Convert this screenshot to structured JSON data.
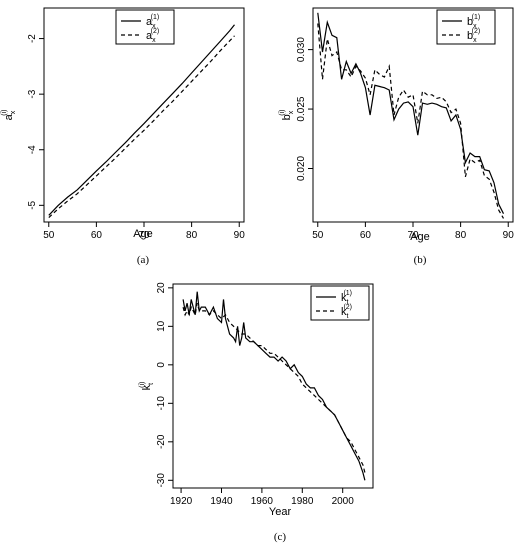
{
  "chart_data": [
    {
      "id": "a",
      "type": "line",
      "caption": "(a)",
      "xlabel": "Age",
      "ylabel": "a",
      "ylabel_sub": "x",
      "ylabel_sup": "(i)",
      "xlim": [
        49,
        91
      ],
      "ylim": [
        -5.3,
        -1.45
      ],
      "xticks": [
        50,
        60,
        70,
        80,
        90
      ],
      "yticks": [
        -5,
        -4,
        -3,
        -2
      ],
      "legend": "top-left",
      "series": [
        {
          "name": "a",
          "sub": "x",
          "sup": "(1)",
          "style": "solid",
          "x": [
            50,
            52,
            54,
            56,
            58,
            60,
            62,
            64,
            66,
            68,
            70,
            72,
            74,
            76,
            78,
            80,
            82,
            84,
            86,
            88,
            89
          ],
          "y": [
            -5.18,
            -5.0,
            -4.85,
            -4.72,
            -4.55,
            -4.38,
            -4.22,
            -4.05,
            -3.88,
            -3.7,
            -3.53,
            -3.35,
            -3.17,
            -2.99,
            -2.81,
            -2.62,
            -2.43,
            -2.24,
            -2.05,
            -1.86,
            -1.75
          ]
        },
        {
          "name": "a",
          "sub": "x",
          "sup": "(2)",
          "style": "dashed",
          "x": [
            50,
            52,
            54,
            56,
            58,
            60,
            62,
            64,
            66,
            68,
            70,
            72,
            74,
            76,
            78,
            80,
            82,
            84,
            86,
            88,
            89
          ],
          "y": [
            -5.22,
            -5.06,
            -4.92,
            -4.79,
            -4.63,
            -4.47,
            -4.31,
            -4.15,
            -3.98,
            -3.81,
            -3.65,
            -3.48,
            -3.3,
            -3.13,
            -2.95,
            -2.77,
            -2.59,
            -2.41,
            -2.22,
            -2.04,
            -1.95
          ]
        }
      ]
    },
    {
      "id": "b",
      "type": "line",
      "caption": "(b)",
      "xlabel": "Age",
      "ylabel": "b",
      "ylabel_sub": "x",
      "ylabel_sup": "(i)",
      "xlim": [
        49,
        91
      ],
      "ylim": [
        0.0155,
        0.0335
      ],
      "xticks": [
        50,
        60,
        70,
        80,
        90
      ],
      "yticks": [
        0.02,
        0.025,
        0.03
      ],
      "ytick_labels": [
        "0.020",
        "0.025",
        "0.030"
      ],
      "legend": "top-right",
      "series": [
        {
          "name": "b",
          "sub": "x",
          "sup": "(1)",
          "style": "solid",
          "x": [
            50,
            51,
            52,
            53,
            54,
            55,
            56,
            57,
            58,
            59,
            60,
            61,
            62,
            63,
            64,
            65,
            66,
            67,
            68,
            69,
            70,
            71,
            72,
            73,
            74,
            75,
            76,
            77,
            78,
            79,
            80,
            81,
            82,
            83,
            84,
            85,
            86,
            87,
            88,
            89
          ],
          "y": [
            0.0331,
            0.0298,
            0.0323,
            0.0312,
            0.031,
            0.0275,
            0.029,
            0.028,
            0.0288,
            0.028,
            0.0268,
            0.0245,
            0.027,
            0.0269,
            0.0268,
            0.0266,
            0.0241,
            0.025,
            0.0255,
            0.0256,
            0.0252,
            0.0228,
            0.0255,
            0.0254,
            0.0255,
            0.0254,
            0.0252,
            0.0251,
            0.024,
            0.0245,
            0.0233,
            0.0205,
            0.0213,
            0.021,
            0.021,
            0.0199,
            0.0198,
            0.0188,
            0.017,
            0.0162
          ]
        },
        {
          "name": "b",
          "sub": "x",
          "sup": "(2)",
          "style": "dashed",
          "x": [
            50,
            51,
            52,
            53,
            54,
            55,
            56,
            57,
            58,
            59,
            60,
            61,
            62,
            63,
            64,
            65,
            66,
            67,
            68,
            69,
            70,
            71,
            72,
            73,
            74,
            75,
            76,
            77,
            78,
            79,
            80,
            81,
            82,
            83,
            84,
            85,
            86,
            87,
            88,
            89
          ],
          "y": [
            0.0322,
            0.0275,
            0.0309,
            0.0295,
            0.0298,
            0.0283,
            0.0283,
            0.0277,
            0.0286,
            0.0282,
            0.0276,
            0.0262,
            0.0283,
            0.0279,
            0.0277,
            0.0286,
            0.0245,
            0.026,
            0.0266,
            0.026,
            0.0262,
            0.0238,
            0.0265,
            0.0262,
            0.0262,
            0.0259,
            0.026,
            0.0256,
            0.0247,
            0.025,
            0.0238,
            0.0193,
            0.0208,
            0.0205,
            0.0207,
            0.0194,
            0.0191,
            0.018,
            0.0165,
            0.0158
          ]
        }
      ]
    },
    {
      "id": "c",
      "type": "line",
      "caption": "(c)",
      "xlabel": "Year",
      "ylabel": "k",
      "ylabel_sub": "t",
      "ylabel_sup": "(i)",
      "xlim": [
        1916,
        2015
      ],
      "ylim": [
        -32,
        21
      ],
      "xticks": [
        1920,
        1940,
        1960,
        1980,
        2000
      ],
      "yticks": [
        -30,
        -20,
        -10,
        0,
        10,
        20
      ],
      "legend": "top-right",
      "series": [
        {
          "name": "k",
          "sub": "t",
          "sup": "(1)",
          "style": "solid",
          "x": [
            1921,
            1922,
            1923,
            1924,
            1925,
            1926,
            1927,
            1928,
            1929,
            1930,
            1932,
            1934,
            1936,
            1938,
            1940,
            1941,
            1942,
            1944,
            1946,
            1947,
            1948,
            1949,
            1950,
            1951,
            1952,
            1954,
            1956,
            1958,
            1960,
            1962,
            1964,
            1966,
            1968,
            1970,
            1972,
            1974,
            1976,
            1978,
            1980,
            1982,
            1984,
            1986,
            1988,
            1990,
            1992,
            1994,
            1996,
            1998,
            2000,
            2002,
            2004,
            2006,
            2008,
            2010,
            2011
          ],
          "y": [
            17,
            14,
            16,
            13,
            17,
            15,
            13,
            19,
            14,
            15,
            15,
            13,
            15,
            12,
            11,
            17,
            12,
            8,
            7,
            6,
            10,
            5,
            7,
            11,
            7,
            6,
            6,
            5,
            4,
            3,
            2,
            2,
            1,
            2,
            1,
            -1,
            0,
            -2,
            -3,
            -5,
            -6,
            -6,
            -8,
            -9,
            -11,
            -12,
            -13,
            -15,
            -17,
            -19,
            -21,
            -23,
            -25,
            -28,
            -30
          ]
        },
        {
          "name": "k",
          "sub": "t",
          "sup": "(2)",
          "style": "dashed",
          "x": [
            1921,
            1922,
            1923,
            1924,
            1925,
            1926,
            1927,
            1928,
            1929,
            1930,
            1932,
            1934,
            1936,
            1938,
            1940,
            1942,
            1944,
            1946,
            1948,
            1950,
            1952,
            1954,
            1956,
            1958,
            1960,
            1962,
            1964,
            1966,
            1968,
            1970,
            1972,
            1974,
            1976,
            1978,
            1980,
            1982,
            1984,
            1986,
            1988,
            1990,
            1992,
            1994,
            1996,
            1998,
            2000,
            2002,
            2004,
            2006,
            2008,
            2010,
            2011
          ],
          "y": [
            15,
            13,
            14,
            13,
            15,
            14,
            13,
            16,
            14,
            14,
            14,
            13,
            14,
            13,
            12,
            13,
            11,
            10,
            9,
            8,
            8,
            7,
            6,
            5,
            5,
            4,
            3,
            3,
            2,
            1,
            0,
            -1,
            -2,
            -3,
            -5,
            -6,
            -7,
            -8,
            -9,
            -10,
            -11,
            -12,
            -13,
            -15,
            -17,
            -19,
            -20,
            -22,
            -24,
            -26,
            -28
          ]
        }
      ]
    }
  ]
}
